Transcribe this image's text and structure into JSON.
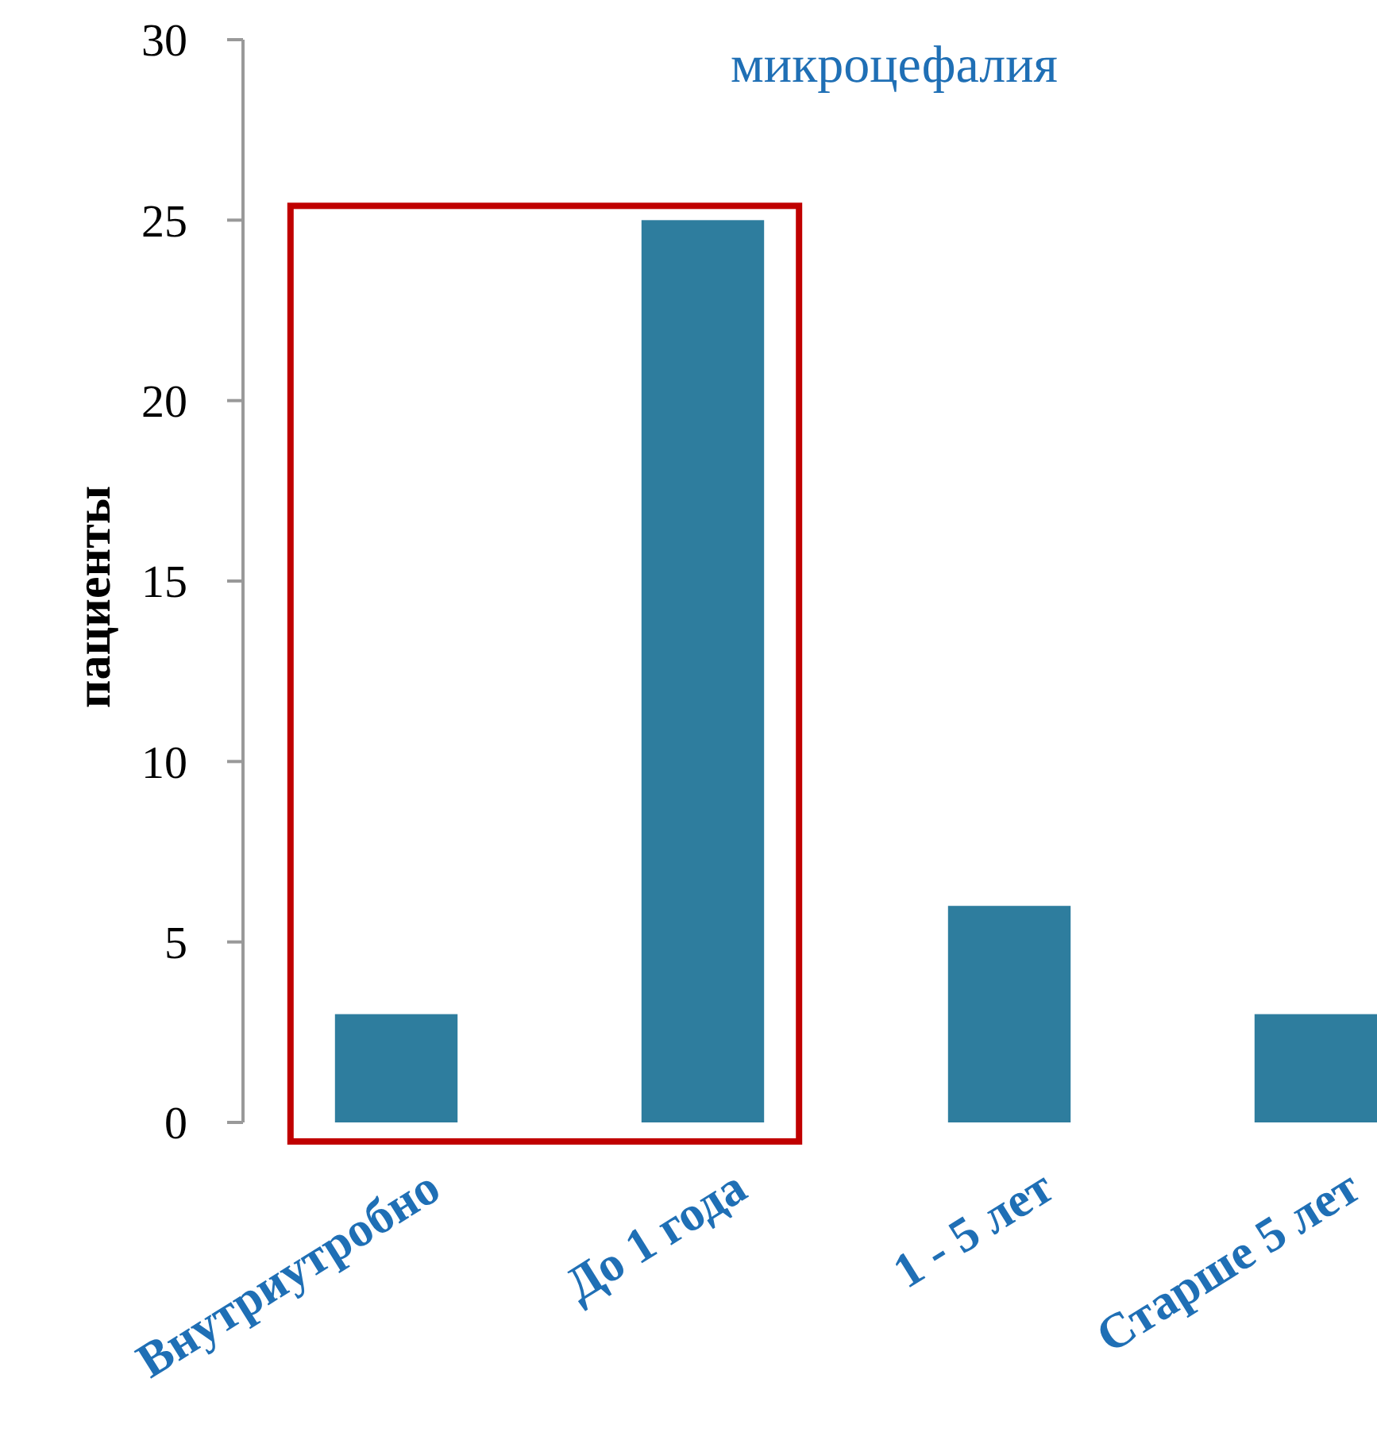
{
  "chart_data": {
    "type": "bar",
    "title": "микроцефалия",
    "ylabel": "пациенты",
    "categories": [
      "Внутриутробно",
      "До 1 года",
      "1 -  5  лет",
      "Старше 5 лет"
    ],
    "values": [
      3,
      25,
      6,
      3
    ],
    "color": "#2e7d9e",
    "ylim": [
      0,
      30
    ],
    "yticks": [
      0,
      5,
      10,
      15,
      20,
      25,
      30
    ],
    "grid": false
  }
}
